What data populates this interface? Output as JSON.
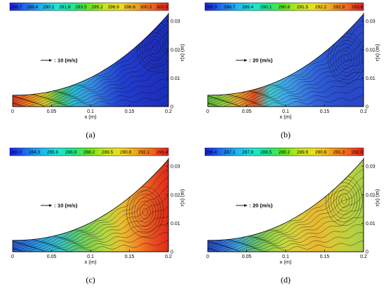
{
  "chart_data": [
    {
      "id": "a",
      "type": "heatmap",
      "panel_label": "(a)",
      "colorbar_ticks": [
        "286.7",
        "288.4",
        "290.1",
        "291.8",
        "293.5",
        "295.2",
        "296.9",
        "298.6",
        "300.3",
        "302.0"
      ],
      "vector_reference": "10 (m/s)",
      "xlabel": "x (m)",
      "ylabel": "r(x) (m)",
      "xticks": [
        "0",
        "0.05",
        "0.1",
        "0.15",
        "0.2"
      ],
      "yticks": [
        "0",
        "0.01",
        "0.02",
        "0.03"
      ],
      "xlim": [
        0,
        0.2
      ],
      "ylim": [
        0,
        0.033
      ],
      "field_colors": [
        "#e04020",
        "#f08020",
        "#d8c828",
        "#50c060",
        "#28b8d8",
        "#3a90e0",
        "#2a60d8",
        "#2040d0",
        "#2038c8",
        "#2030c0",
        "#1830b8"
      ],
      "vortex_x": 0.183,
      "vortex_y": 0.021
    },
    {
      "id": "b",
      "type": "heatmap",
      "panel_label": "(b)",
      "colorbar_ticks": [
        "288.0",
        "288.7",
        "289.4",
        "290.1",
        "290.8",
        "291.5",
        "292.2",
        "292.9",
        "293.6"
      ],
      "vector_reference": "20 (m/s)",
      "xlabel": "x (m)",
      "ylabel": "r(x) (m)",
      "xticks": [
        "0",
        "0.05",
        "0.1",
        "0.15",
        "0.2"
      ],
      "yticks": [
        "0",
        "0.01",
        "0.02",
        "0.03"
      ],
      "xlim": [
        0,
        0.2
      ],
      "ylim": [
        0,
        0.033
      ],
      "field_colors": [
        "#60c040",
        "#90d040",
        "#e8a030",
        "#e05020",
        "#40c8d0",
        "#40a8e8",
        "#3a80e0",
        "#3060d8",
        "#2a50d0",
        "#2848c8",
        "#2848c8"
      ],
      "vortex_x": 0.178,
      "vortex_y": 0.017
    },
    {
      "id": "c",
      "type": "heatmap",
      "panel_label": "(c)",
      "colorbar_ticks": [
        "283.0",
        "284.3",
        "285.6",
        "286.9",
        "288.2",
        "289.5",
        "290.8",
        "292.1",
        "293.4"
      ],
      "vector_reference": "10 (m/s)",
      "xlabel": "x (m)",
      "ylabel": "r(x) (m)",
      "xticks": [
        "0",
        "0.05",
        "0.1",
        "0.15",
        "0.2"
      ],
      "yticks": [
        "0",
        "0.01",
        "0.02",
        "0.03"
      ],
      "xlim": [
        0,
        0.2
      ],
      "ylim": [
        0,
        0.033
      ],
      "field_colors": [
        "#2a58d8",
        "#2a80e0",
        "#30a8e0",
        "#38c0c8",
        "#58c878",
        "#88d050",
        "#b8d840",
        "#e8c030",
        "#f08828",
        "#e85020",
        "#e02818"
      ],
      "vortex_x": 0.17,
      "vortex_y": 0.014
    },
    {
      "id": "d",
      "type": "heatmap",
      "panel_label": "(d)",
      "colorbar_ticks": [
        "286.4",
        "287.1",
        "287.8",
        "288.5",
        "289.2",
        "289.9",
        "290.6",
        "291.3",
        "292.0"
      ],
      "vector_reference": "20 (m/s)",
      "xlabel": "x (m)",
      "ylabel": "r(x) (m)",
      "xticks": [
        "0",
        "0.05",
        "0.1",
        "0.15",
        "0.2"
      ],
      "yticks": [
        "0",
        "0.01",
        "0.02",
        "0.03"
      ],
      "xlim": [
        0,
        0.2
      ],
      "ylim": [
        0,
        0.033
      ],
      "field_colors": [
        "#2848c8",
        "#3070d8",
        "#40a8d8",
        "#60c070",
        "#98d048",
        "#c8d840",
        "#e0c838",
        "#e8b830",
        "#d8c838",
        "#c0d040",
        "#a8d048"
      ],
      "vortex_x": 0.175,
      "vortex_y": 0.018
    }
  ],
  "colorbar_gradient": [
    "#1e1ef0",
    "#1e6ef0",
    "#1eb4f0",
    "#1ee6d2",
    "#1ee68c",
    "#64e61e",
    "#c8e61e",
    "#f0dc1e",
    "#f0a01e",
    "#f0641e",
    "#e61e1e"
  ]
}
